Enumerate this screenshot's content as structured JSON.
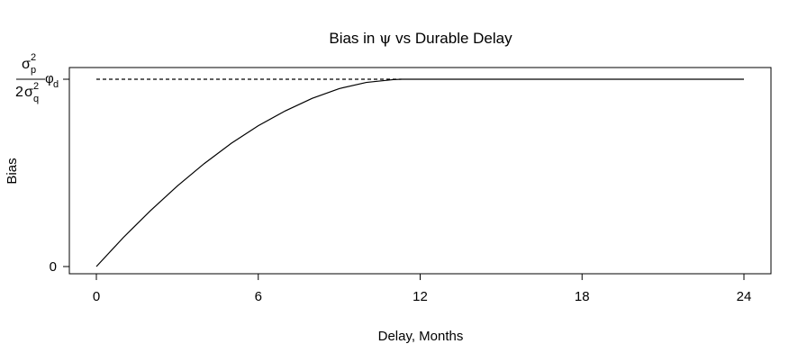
{
  "chart_data": {
    "type": "line",
    "title": {
      "prefix": "Bias in ",
      "symbol": "ψ",
      "suffix": " vs Durable Delay"
    },
    "xlabel": "Delay, Months",
    "ylabel": "Bias",
    "xlim": [
      0,
      24
    ],
    "ylim": [
      0,
      1
    ],
    "x_ticks": [
      0,
      6,
      12,
      18,
      24
    ],
    "y_ticks": [
      {
        "value": 0,
        "label": "0"
      }
    ],
    "y_max_label": {
      "numerator_symbol": "σ",
      "numerator_sub": "p",
      "numerator_sup": "2",
      "denominator_coef": "2",
      "denominator_symbol": "σ",
      "denominator_sub": "q",
      "denominator_sup": "2",
      "factor_symbol": "φ",
      "factor_sub": "d"
    },
    "grid": false,
    "series": [
      {
        "style": "solid",
        "color": "#000000",
        "x": [
          0,
          1,
          2,
          3,
          4,
          5,
          6,
          7,
          8,
          9,
          10,
          11,
          11.3,
          12,
          14,
          16,
          18,
          20,
          22,
          24
        ],
        "y": [
          0,
          0.155,
          0.298,
          0.43,
          0.55,
          0.658,
          0.752,
          0.831,
          0.898,
          0.95,
          0.983,
          0.998,
          1.0,
          1.0,
          1.0,
          1.0,
          1.0,
          1.0,
          1.0,
          1.0
        ]
      },
      {
        "style": "dashed",
        "color": "#000000",
        "x": [
          0,
          11.3
        ],
        "y": [
          1.0,
          1.0
        ]
      }
    ]
  }
}
